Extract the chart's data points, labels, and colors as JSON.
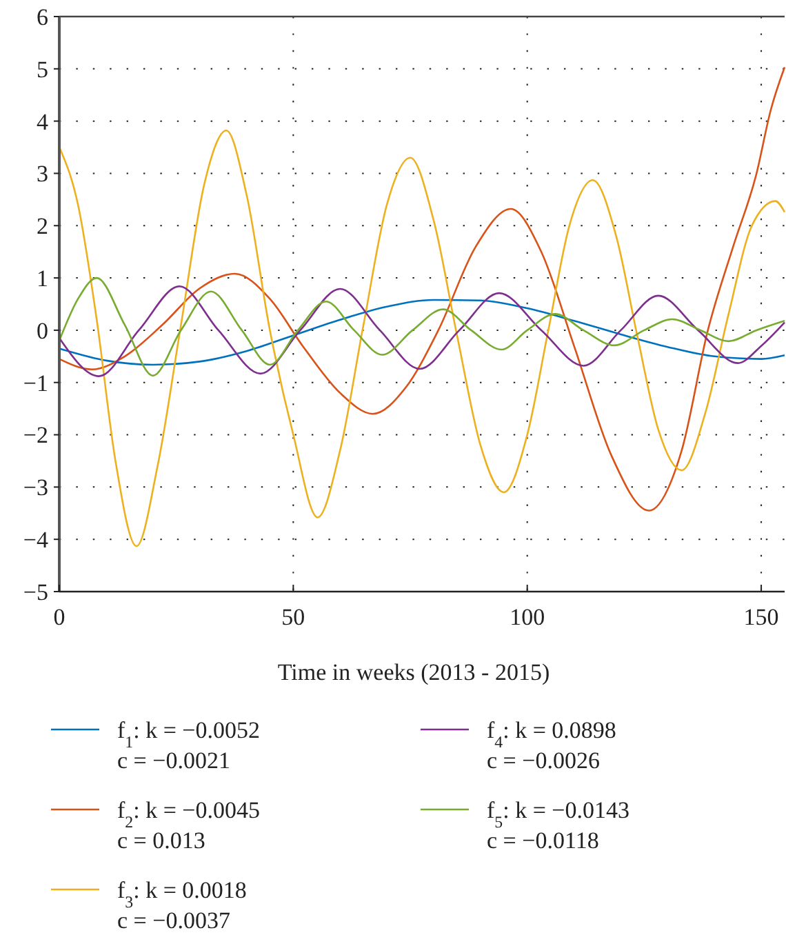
{
  "chart_data": {
    "type": "line",
    "xlabel": "Time in weeks (2013 - 2015)",
    "xlim": [
      0,
      155
    ],
    "xticks": [
      0,
      50,
      100,
      150
    ],
    "ylim": [
      -5,
      6
    ],
    "yticks": [
      -5,
      -4,
      -3,
      -2,
      -1,
      0,
      1,
      2,
      3,
      4,
      5,
      6
    ],
    "grid": true,
    "legend": "bottom",
    "marker": "none",
    "line_style": "solid",
    "series": [
      {
        "name": "f$_{1}$: k = −0.0052\nc = −0.0021",
        "color": "#0072bd",
        "x": [
          0,
          10,
          20,
          30,
          40,
          50,
          60,
          70,
          80,
          90,
          100,
          110,
          120,
          130,
          140,
          150,
          155
        ],
        "values": [
          -0.35,
          -0.58,
          -0.66,
          -0.6,
          -0.4,
          -0.1,
          0.2,
          0.45,
          0.58,
          0.57,
          0.42,
          0.18,
          -0.08,
          -0.32,
          -0.5,
          -0.55,
          -0.48
        ]
      },
      {
        "name": "f$_{2}$: k = −0.0045\nc = 0.013",
        "color": "#d95319",
        "x": [
          0,
          7,
          14,
          22,
          30,
          37.5,
          45,
          52,
          60,
          67,
          74,
          81,
          89,
          96.5,
          103,
          110,
          118,
          126,
          133,
          138.6,
          144,
          149,
          152,
          155
        ],
        "values": [
          -0.55,
          -0.75,
          -0.5,
          0.1,
          0.8,
          1.08,
          0.6,
          -0.3,
          -1.2,
          -1.6,
          -1.1,
          0,
          1.6,
          2.32,
          1.5,
          -0.3,
          -2.4,
          -3.45,
          -2.3,
          0,
          1.6,
          3,
          4.2,
          5.03
        ]
      },
      {
        "name": "f$_{3}$: k = 0.0018\nc = −0.0037",
        "color": "#edb120",
        "x": [
          0,
          4,
          8,
          12,
          16.5,
          21,
          26,
          31,
          35.7,
          40,
          45,
          50,
          55.2,
          60,
          65,
          70,
          75,
          80,
          85,
          90,
          95,
          100,
          104.5,
          109,
          114,
          119,
          123.5,
          128,
          133,
          138,
          143,
          148,
          153,
          155
        ],
        "values": [
          3.5,
          2.4,
          0.2,
          -2.5,
          -4.13,
          -2.6,
          0.1,
          2.8,
          3.82,
          2.6,
          0,
          -2,
          -3.58,
          -2.3,
          0.1,
          2.4,
          3.3,
          2.1,
          -0.1,
          -2.2,
          -3.1,
          -2,
          0,
          2,
          2.87,
          1.8,
          -0.1,
          -1.9,
          -2.68,
          -1.6,
          0.3,
          2,
          2.47,
          2.26
        ]
      },
      {
        "name": "f$_{4}$: k = 0.0898\nc = −0.0026",
        "color": "#7e2f8e",
        "x": [
          0,
          8.5,
          17,
          25.7,
          34,
          43,
          51.5,
          60,
          68.5,
          77,
          85.5,
          94,
          103,
          112,
          120,
          128,
          136.5,
          145,
          150,
          155
        ],
        "values": [
          -0.15,
          -0.88,
          0,
          0.84,
          0,
          -0.83,
          0,
          0.79,
          0,
          -0.74,
          0,
          0.71,
          0,
          -0.68,
          0,
          0.66,
          0,
          -0.63,
          -0.3,
          0.15
        ]
      },
      {
        "name": "f$_{5}$: k = −0.0143\nc = −0.0118",
        "color": "#77ac30",
        "x": [
          0,
          4,
          8,
          14,
          20,
          26,
          32.4,
          39,
          45,
          51,
          57,
          63,
          69,
          75.5,
          82,
          88,
          94.5,
          100,
          106,
          112,
          118.6,
          125,
          131,
          137,
          143,
          149,
          155
        ],
        "values": [
          -0.2,
          0.6,
          1,
          0.1,
          -0.87,
          0,
          0.74,
          0,
          -0.66,
          0,
          0.55,
          0,
          -0.47,
          0,
          0.4,
          0,
          -0.37,
          0,
          0.31,
          0,
          -0.29,
          0,
          0.21,
          0,
          -0.21,
          0,
          0.18
        ]
      }
    ]
  }
}
